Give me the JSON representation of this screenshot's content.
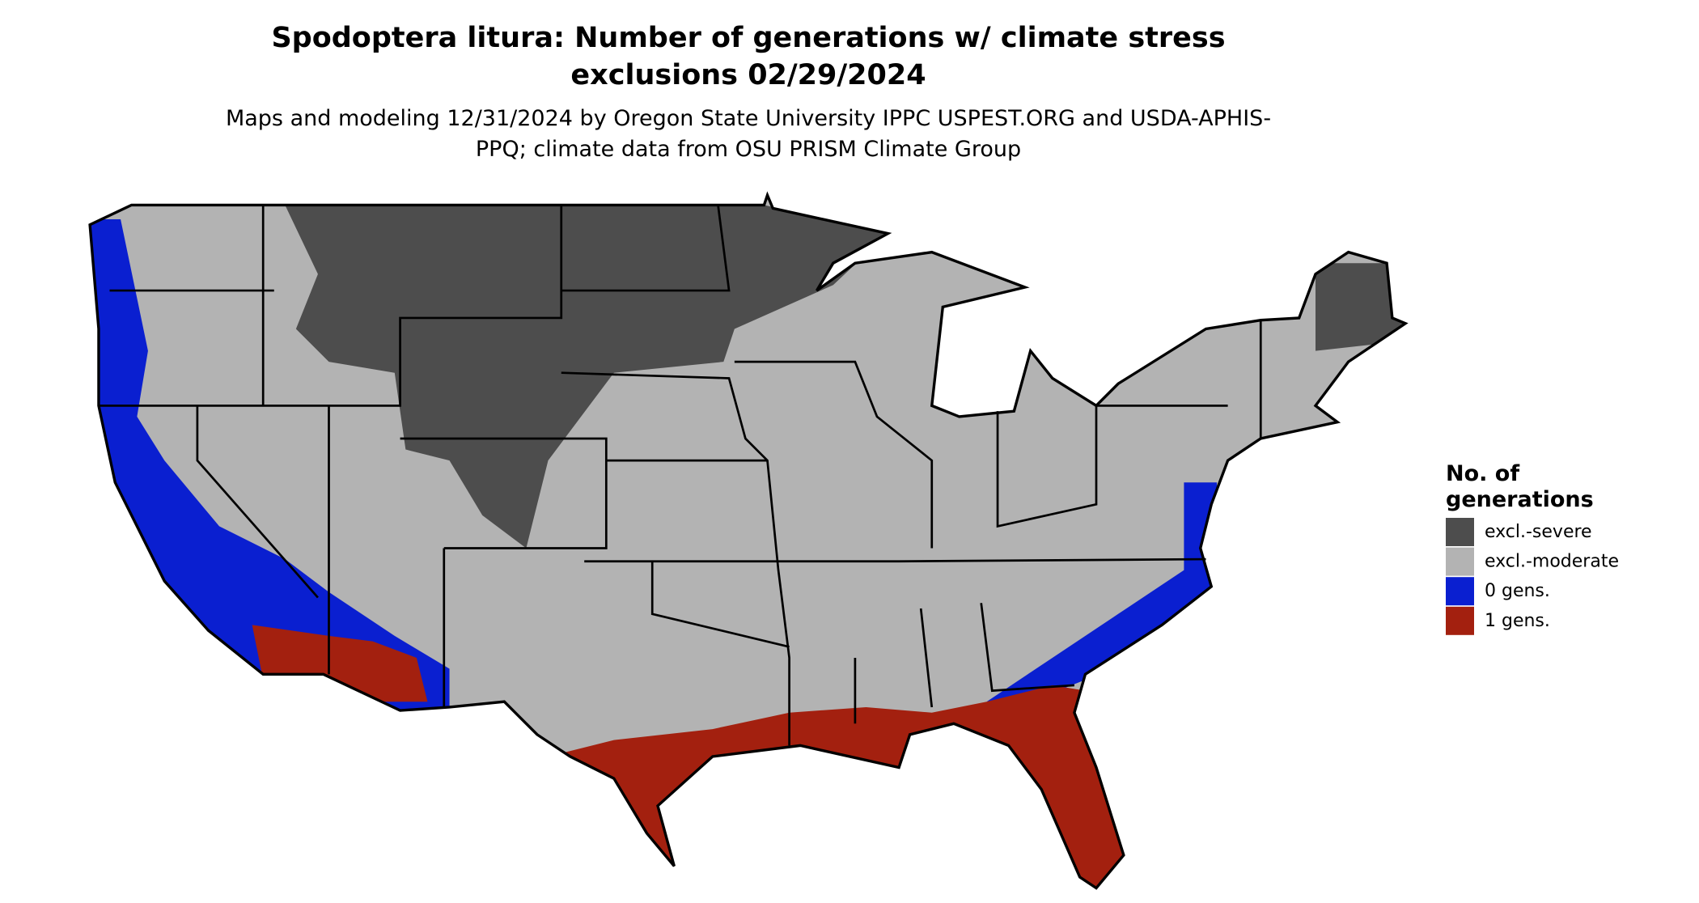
{
  "title": "Spodoptera litura: Number of generations w/ climate stress exclusions 02/29/2024",
  "subtitle": "Maps and modeling 12/31/2024 by Oregon State University IPPC USPEST.ORG and USDA-APHIS-PPQ; climate data from OSU PRISM Climate Group",
  "legend": {
    "title": "No. of generations",
    "items": [
      {
        "label": "excl.-severe",
        "color": "#4d4d4d"
      },
      {
        "label": "excl.-moderate",
        "color": "#b3b3b3"
      },
      {
        "label": "0 gens.",
        "color": "#0a1fd0"
      },
      {
        "label": "1 gens.",
        "color": "#a3200f"
      }
    ]
  }
}
